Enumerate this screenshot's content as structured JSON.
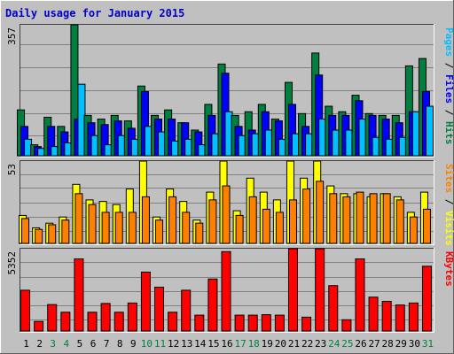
{
  "chart_data": [
    {
      "type": "bar",
      "title": "Daily usage for January 2015",
      "ymax_label": "357",
      "right_label": {
        "parts": [
          {
            "text": "Pages",
            "color": "#00c0ff"
          },
          {
            "text": " / ",
            "color": "#000000"
          },
          {
            "text": "Files",
            "color": "#0000ff"
          },
          {
            "text": " / ",
            "color": "#000000"
          },
          {
            "text": "Hits",
            "color": "#008040"
          }
        ]
      },
      "ylim": [
        0,
        357
      ],
      "categories": [
        "1",
        "2",
        "3",
        "4",
        "5",
        "6",
        "7",
        "8",
        "9",
        "10",
        "11",
        "12",
        "13",
        "14",
        "15",
        "16",
        "17",
        "18",
        "19",
        "20",
        "21",
        "22",
        "23",
        "24",
        "25",
        "26",
        "27",
        "28",
        "29",
        "30",
        "31"
      ],
      "weekend_days": [
        "3",
        "4",
        "10",
        "11",
        "17",
        "18",
        "24",
        "25",
        "31"
      ],
      "series": [
        {
          "name": "Hits",
          "color": "#008040",
          "values": [
            125,
            30,
            105,
            80,
            357,
            110,
            100,
            110,
            95,
            190,
            110,
            125,
            90,
            70,
            140,
            250,
            110,
            120,
            140,
            100,
            200,
            115,
            280,
            135,
            120,
            165,
            115,
            110,
            110,
            245,
            265
          ]
        },
        {
          "name": "Files",
          "color": "#0000ff",
          "values": [
            80,
            25,
            80,
            65,
            100,
            90,
            85,
            95,
            75,
            175,
            100,
            100,
            90,
            65,
            110,
            225,
            80,
            70,
            120,
            95,
            140,
            80,
            220,
            110,
            110,
            150,
            110,
            100,
            90,
            120,
            175
          ]
        },
        {
          "name": "Pages",
          "color": "#00c0ff",
          "values": [
            45,
            20,
            25,
            35,
            195,
            55,
            30,
            55,
            45,
            80,
            65,
            40,
            45,
            30,
            60,
            120,
            55,
            60,
            70,
            45,
            60,
            60,
            100,
            70,
            70,
            100,
            50,
            45,
            50,
            120,
            135
          ]
        }
      ]
    },
    {
      "type": "bar",
      "ymax_label": "53",
      "right_label": {
        "parts": [
          {
            "text": "Sites",
            "color": "#ff8000"
          },
          {
            "text": " / ",
            "color": "#000000"
          },
          {
            "text": "Visits",
            "color": "#ffff00"
          }
        ]
      },
      "ylim": [
        0,
        53
      ],
      "categories": [
        "1",
        "2",
        "3",
        "4",
        "5",
        "6",
        "7",
        "8",
        "9",
        "10",
        "11",
        "12",
        "13",
        "14",
        "15",
        "16",
        "17",
        "18",
        "19",
        "20",
        "21",
        "22",
        "23",
        "24",
        "25",
        "26",
        "27",
        "28",
        "29",
        "30",
        "31"
      ],
      "series": [
        {
          "name": "Visits",
          "color": "#ffff00",
          "values": [
            18,
            10,
            13,
            17,
            38,
            28,
            27,
            25,
            35,
            53,
            17,
            35,
            27,
            15,
            33,
            53,
            21,
            42,
            33,
            28,
            53,
            42,
            53,
            37,
            32,
            32,
            30,
            32,
            30,
            20,
            33
          ]
        },
        {
          "name": "Sites",
          "color": "#ff8000",
          "values": [
            16,
            9,
            12,
            15,
            32,
            25,
            20,
            20,
            20,
            30,
            15,
            30,
            20,
            13,
            28,
            37,
            18,
            30,
            22,
            20,
            28,
            35,
            40,
            32,
            30,
            33,
            32,
            32,
            28,
            17,
            22
          ]
        }
      ]
    },
    {
      "type": "bar",
      "ymax_label": "5352",
      "right_label": {
        "parts": [
          {
            "text": "KBytes",
            "color": "#ff0000"
          }
        ]
      },
      "ylim": [
        0,
        5352
      ],
      "categories": [
        "1",
        "2",
        "3",
        "4",
        "5",
        "6",
        "7",
        "8",
        "9",
        "10",
        "11",
        "12",
        "13",
        "14",
        "15",
        "16",
        "17",
        "18",
        "19",
        "20",
        "21",
        "22",
        "23",
        "24",
        "25",
        "26",
        "27",
        "28",
        "29",
        "30",
        "31"
      ],
      "series": [
        {
          "name": "KBytes",
          "color": "#ff0000",
          "values": [
            2650,
            620,
            1720,
            1220,
            4690,
            1220,
            1790,
            1220,
            1820,
            3830,
            2850,
            1220,
            2650,
            1030,
            3380,
            5160,
            1030,
            1030,
            1060,
            1030,
            5352,
            900,
            5352,
            2950,
            730,
            4690,
            2200,
            1930,
            1690,
            1820,
            4210
          ]
        }
      ]
    }
  ]
}
